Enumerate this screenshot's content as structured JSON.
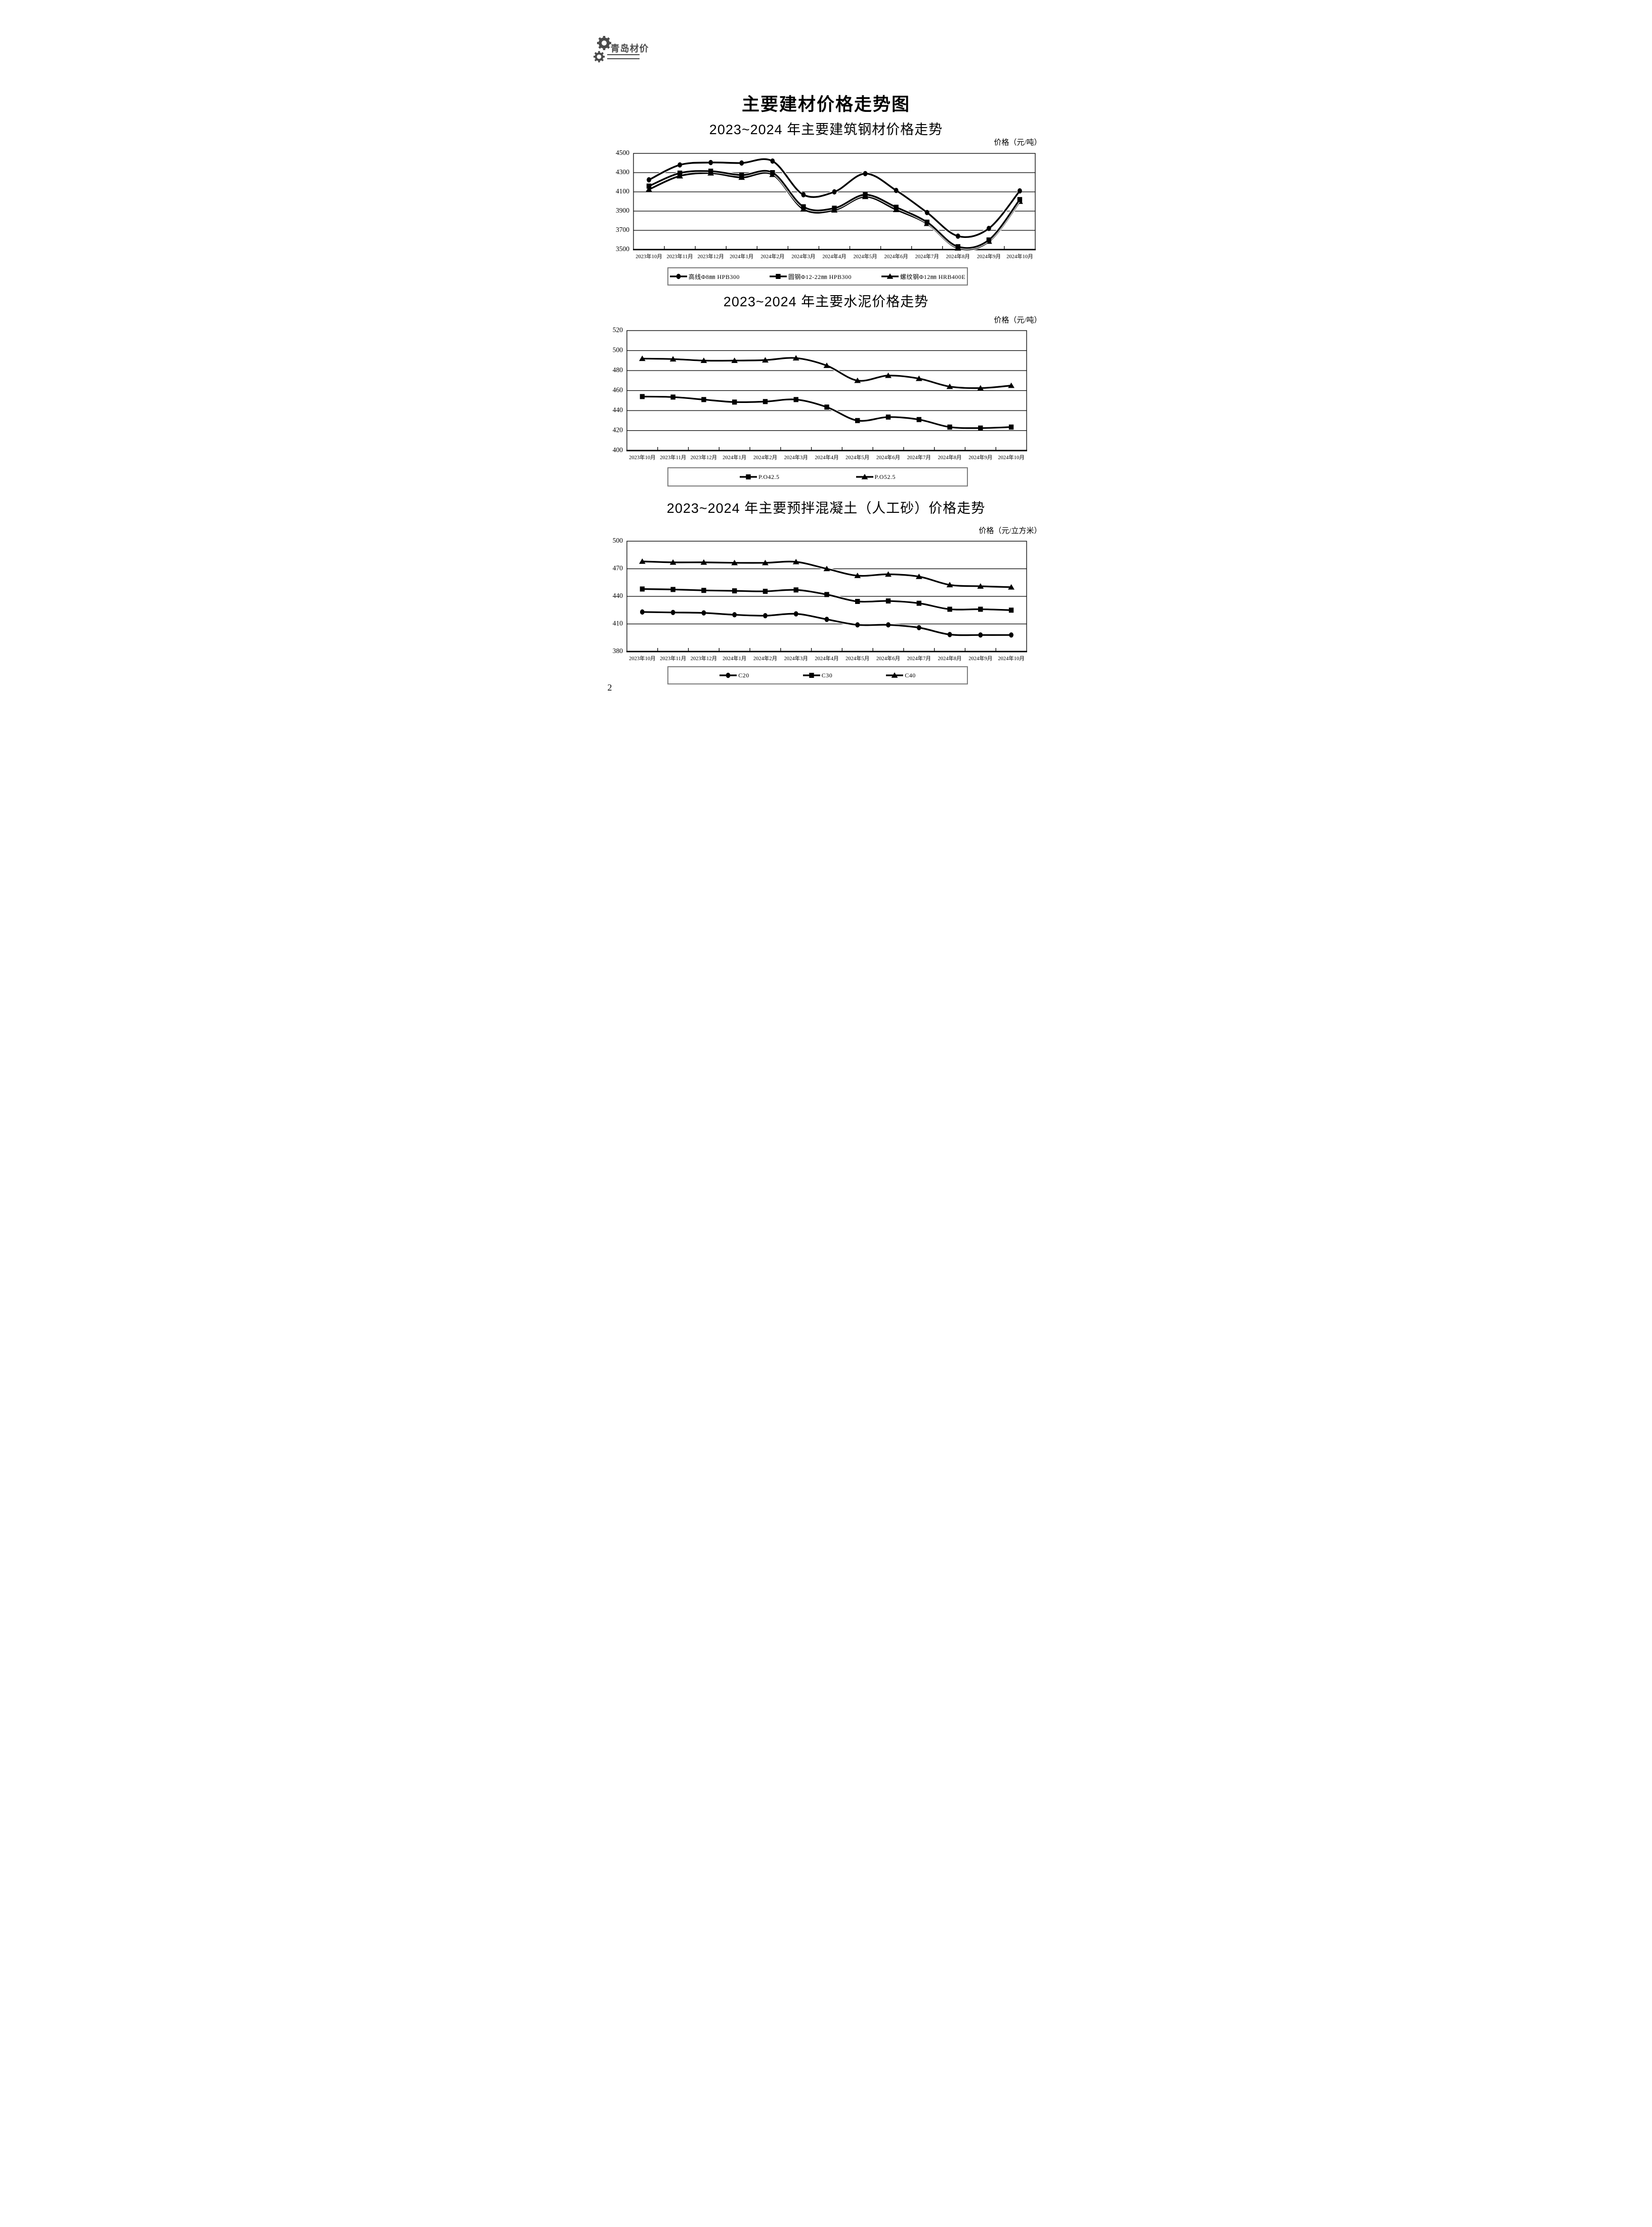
{
  "page": {
    "number": "2"
  },
  "header": {
    "brand": "青岛材价"
  },
  "main_title": "主要建材价格走势图",
  "chart_data": [
    {
      "type": "line",
      "title": "2023~2024 年主要建筑钢材价格走势",
      "unit": "价格（元/吨）",
      "ylabel": "价格（元/吨）",
      "ylim": [
        3500,
        4500
      ],
      "y_ticks": [
        4500,
        4300,
        4100,
        3900,
        3700,
        3500
      ],
      "grid": true,
      "legend_position": "bottom",
      "categories": [
        "2023年10月",
        "2023年11月",
        "2023年12月",
        "2024年1月",
        "2024年2月",
        "2024年3月",
        "2024年4月",
        "2024年5月",
        "2024年6月",
        "2024年7月",
        "2024年8月",
        "2024年9月",
        "2024年10月"
      ],
      "series": [
        {
          "name": "高线Φ8㎜ HPB300",
          "marker": "circle",
          "values": [
            4225,
            4380,
            4405,
            4400,
            4420,
            4070,
            4100,
            4290,
            4115,
            3885,
            3640,
            3720,
            4110
          ]
        },
        {
          "name": "圆钢Φ12-22㎜ HPB300",
          "marker": "square",
          "values": [
            4160,
            4295,
            4315,
            4275,
            4300,
            3945,
            3930,
            4070,
            3940,
            3785,
            3530,
            3600,
            4020
          ]
        },
        {
          "name": "螺纹钢Φ12㎜ HRB400E",
          "marker": "triangle",
          "values": [
            4125,
            4265,
            4295,
            4250,
            4280,
            3920,
            3910,
            4050,
            3915,
            3770,
            3515,
            3585,
            4000
          ]
        }
      ]
    },
    {
      "type": "line",
      "title": "2023~2024 年主要水泥价格走势",
      "unit": "价格（元/吨）",
      "ylabel": "价格（元/吨）",
      "ylim": [
        400,
        520
      ],
      "y_ticks": [
        520,
        500,
        480,
        460,
        440,
        420,
        400
      ],
      "grid": true,
      "legend_position": "bottom",
      "categories": [
        "2023年10月",
        "2023年11月",
        "2023年12月",
        "2024年1月",
        "2024年2月",
        "2024年3月",
        "2024年4月",
        "2024年5月",
        "2024年6月",
        "2024年7月",
        "2024年8月",
        "2024年9月",
        "2024年10月"
      ],
      "series": [
        {
          "name": "P.O42.5",
          "marker": "square",
          "values": [
            454,
            453.5,
            451,
            448.5,
            449,
            451,
            443.5,
            430,
            433.5,
            431,
            423.5,
            422.5,
            423.5
          ]
        },
        {
          "name": "P.O52.5",
          "marker": "triangle",
          "values": [
            492,
            491.5,
            490,
            490,
            490.5,
            492.5,
            485,
            470,
            475,
            472,
            464,
            462.5,
            465
          ]
        }
      ]
    },
    {
      "type": "line",
      "title": "2023~2024 年主要预拌混凝土（人工砂）价格走势",
      "unit": "价格（元/立方米）",
      "ylabel": "价格（元/立方米）",
      "ylim": [
        380,
        500
      ],
      "y_ticks": [
        500,
        470,
        440,
        410,
        380
      ],
      "grid": true,
      "legend_position": "bottom",
      "categories": [
        "2023年10月",
        "2023年11月",
        "2023年12月",
        "2024年1月",
        "2024年2月",
        "2024年3月",
        "2024年4月",
        "2024年5月",
        "2024年6月",
        "2024年7月",
        "2024年8月",
        "2024年9月",
        "2024年10月"
      ],
      "series": [
        {
          "name": "C20",
          "marker": "circle",
          "values": [
            423,
            422.5,
            422,
            420,
            419,
            421,
            415,
            409,
            409,
            406,
            398.5,
            398,
            398
          ]
        },
        {
          "name": "C30",
          "marker": "square",
          "values": [
            448,
            447.5,
            446.5,
            446,
            445.5,
            447,
            442,
            434.5,
            435,
            432.5,
            426,
            426,
            425
          ]
        },
        {
          "name": "C40",
          "marker": "triangle",
          "values": [
            478,
            477,
            477,
            476.5,
            476.5,
            477.5,
            470,
            462.5,
            464,
            461.5,
            452.5,
            451,
            450
          ]
        }
      ]
    }
  ]
}
